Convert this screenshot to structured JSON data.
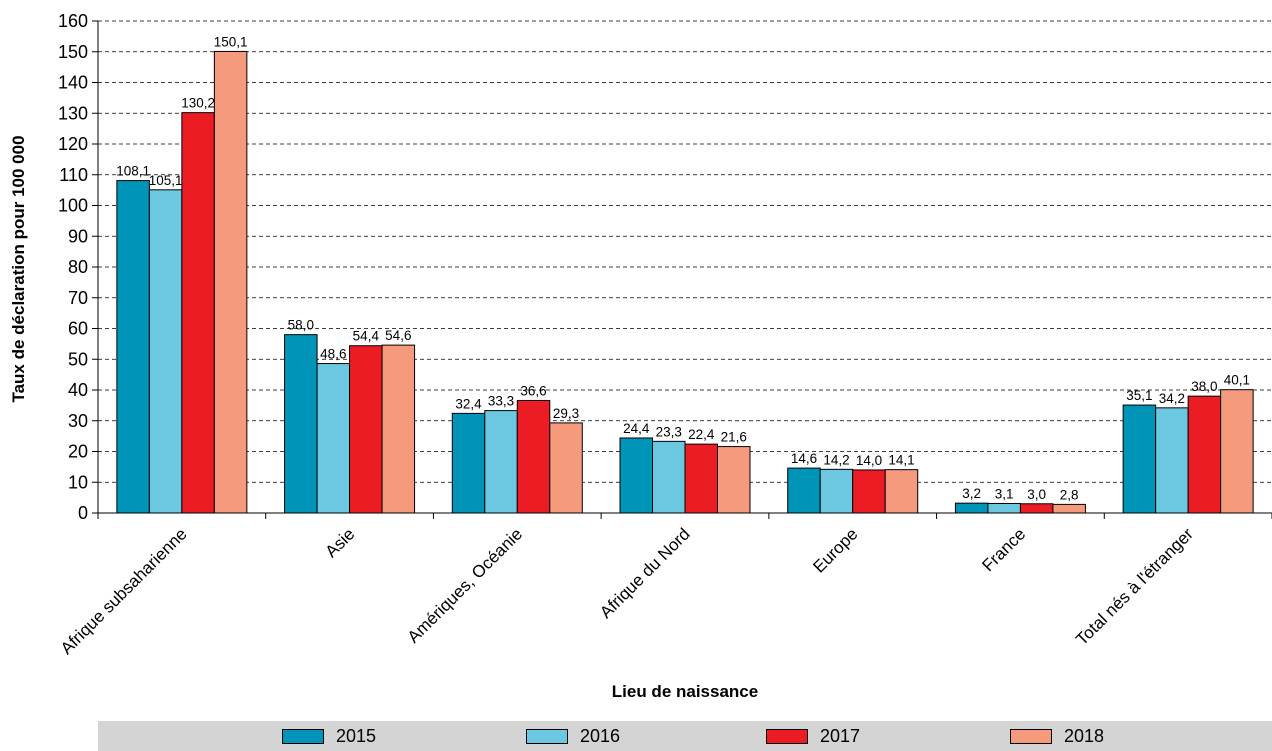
{
  "chart_data": {
    "type": "bar",
    "title": "",
    "xlabel": "Lieu de naissance",
    "ylabel": "Taux de déclaration pour 100 000",
    "ylim": [
      0,
      160
    ],
    "yticks": [
      0,
      10,
      20,
      30,
      40,
      50,
      60,
      70,
      80,
      90,
      100,
      110,
      120,
      130,
      140,
      150,
      160
    ],
    "grid": "horizontal dashed",
    "legend_position": "bottom",
    "categories": [
      "Afrique subsaharienne",
      "Asie",
      "Amériques, Océanie",
      "Afrique du Nord",
      "Europe",
      "France",
      "Total nés à l'étranger"
    ],
    "series": [
      {
        "name": "2015",
        "color": "#0094b8",
        "values": [
          108.1,
          58.0,
          32.4,
          24.4,
          14.6,
          3.2,
          35.1
        ],
        "labels": [
          "108,1",
          "58,0",
          "32,4",
          "24,4",
          "14,6",
          "3,2",
          "35,1"
        ]
      },
      {
        "name": "2016",
        "color": "#6cc7e0",
        "values": [
          105.1,
          48.6,
          33.3,
          23.3,
          14.2,
          3.1,
          34.2
        ],
        "labels": [
          "105,1",
          "48,6",
          "33,3",
          "23,3",
          "14,2",
          "3,1",
          "34,2"
        ]
      },
      {
        "name": "2017",
        "color": "#ec1c24",
        "values": [
          130.2,
          54.4,
          36.6,
          22.4,
          14.0,
          3.0,
          38.0
        ],
        "labels": [
          "130,2",
          "54,4",
          "36,6",
          "22,4",
          "14,0",
          "3,0",
          "38,0"
        ]
      },
      {
        "name": "2018",
        "color": "#f59a7c",
        "values": [
          150.1,
          54.6,
          29.3,
          21.6,
          14.1,
          2.8,
          40.1
        ],
        "labels": [
          "150,1",
          "54,6",
          "29,3",
          "21,6",
          "14,1",
          "2,8",
          "40,1"
        ]
      }
    ]
  }
}
